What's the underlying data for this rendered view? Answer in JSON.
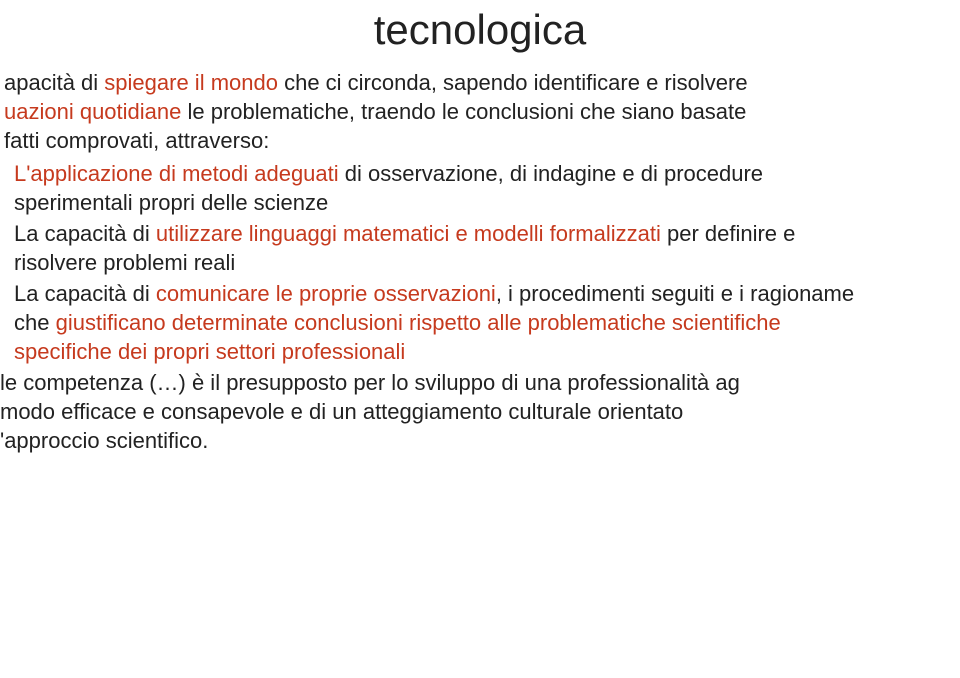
{
  "title": "tecnologica",
  "colors": {
    "text": "#222222",
    "emphasis": "#c63a1e",
    "background": "#ffffff"
  },
  "intro": {
    "line1_pre": "apacità di ",
    "line1_em": "spiegare il mondo",
    "line1_post": " che ci circonda, sapendo identificare e risolvere",
    "line2_pre_em": "uazioni quotidiane",
    "line2_post": " le problematiche, traendo le conclusioni che siano basate",
    "line3": " fatti comprovati, attraverso:"
  },
  "bullets": [
    {
      "em1": "L'applicazione di metodi adeguati",
      "plain1": " di osservazione, di indagine e di procedure",
      "line2": "sperimentali propri delle scienze"
    },
    {
      "plain1": "La capacità di ",
      "em1": "utilizzare linguaggi matematici e modelli formalizzati",
      "plain2": " per definire e",
      "line2": "risolvere problemi reali"
    },
    {
      "plain1": "La capacità di ",
      "em1": "comunicare le proprie osservazioni",
      "plain2": ", i procedimenti seguiti e i ragioname",
      "line2_pre": "che ",
      "line2_em": "giustificano determinate conclusioni rispetto alle problematiche scientifiche",
      "line3_em": "specifiche dei propri settori professionali"
    }
  ],
  "closing": {
    "line1": "le competenza (…) è il presupposto per lo sviluppo di una professionalità ag",
    "line2": "modo efficace e consapevole  e di un atteggiamento culturale  orientato",
    "line3": "'approccio scientifico."
  }
}
